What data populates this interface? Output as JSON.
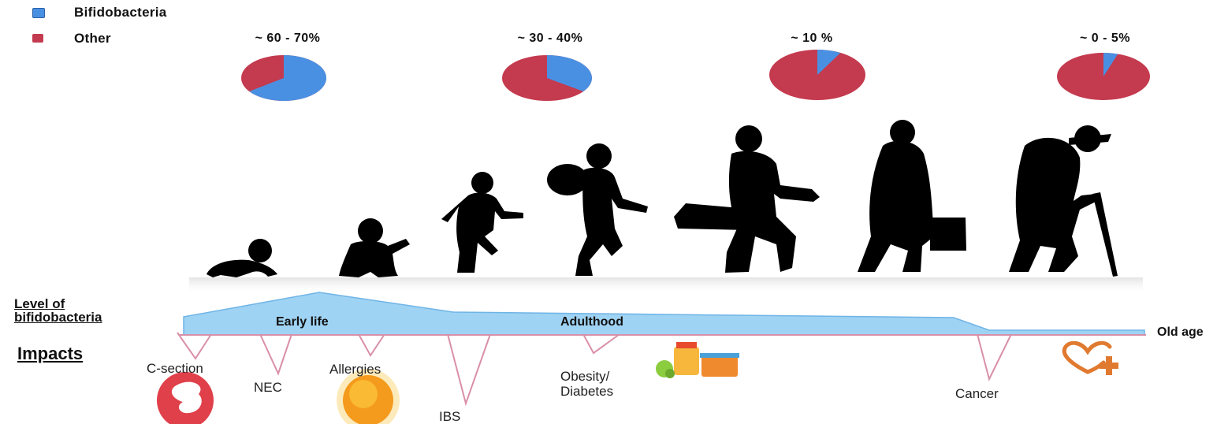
{
  "legend": [
    {
      "label": "Bifidobacteria",
      "color": "#4a90e2"
    },
    {
      "label": "Other",
      "color": "#c43a4e"
    }
  ],
  "stages": [
    {
      "label": "~ 60 - 70%",
      "bifido_fraction": 0.65
    },
    {
      "label": "~ 30 - 40%",
      "bifido_fraction": 0.35
    },
    {
      "label": "~ 10 %",
      "bifido_fraction": 0.08
    },
    {
      "label": "~ 0 - 5%",
      "bifido_fraction": 0.05
    }
  ],
  "level_label_line1": "Level of",
  "level_label_line2": "bifidobacteria",
  "band_labels": {
    "early_life": "Early life",
    "adulthood": "Adulthood",
    "old_age": "Old age"
  },
  "impacts_label": "Impacts",
  "impacts": [
    {
      "label": "C-section",
      "icon": "pregnancy-icon"
    },
    {
      "label": "NEC"
    },
    {
      "label": "Allergies",
      "icon": "sun-icon"
    },
    {
      "label": "IBS"
    },
    {
      "label": "Obesity/",
      "label2": "Diabetes",
      "icon": "food-jars-icon"
    },
    {
      "label": "Cancer",
      "icon": "heart-plus-icon"
    }
  ],
  "colors": {
    "band": "#9fd3f3",
    "band_edge": "#6fb4e6",
    "impact_line": "#d98fa8",
    "accent_red": "#e0404a",
    "accent_orange": "#e07a30"
  }
}
